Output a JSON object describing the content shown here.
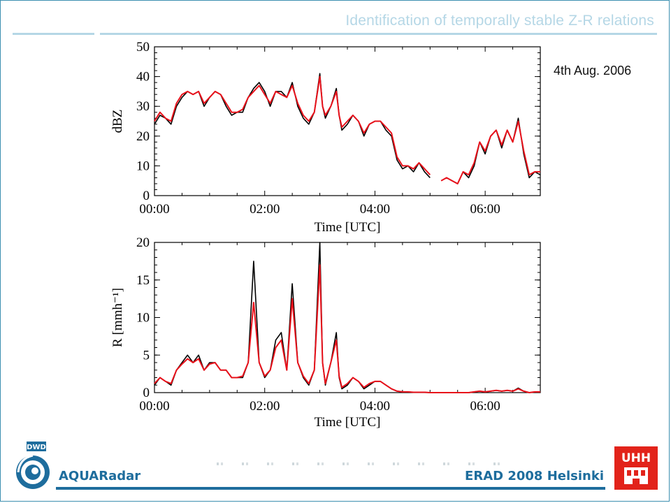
{
  "slide": {
    "title": "Identification of temporally stable Z-R relations",
    "date_label": "4th Aug. 2006",
    "footer_left": "AQUARadar",
    "footer_right": "ERAD 2008 Helsinki",
    "logo_left_text": "DWD",
    "logo_right_text": "UHH"
  },
  "colors": {
    "title": "#b5d7e6",
    "accent": "#1e6d9d",
    "series_black": "#000000",
    "series_red": "#e8101a",
    "uhh_red": "#e2231a"
  },
  "chart_data": [
    {
      "type": "line",
      "xlabel": "Time [UTC]",
      "ylabel": "dBZ",
      "xlim": [
        0,
        7
      ],
      "ylim": [
        0,
        50
      ],
      "x_ticks": [
        "00:00",
        "02:00",
        "04:00",
        "06:00"
      ],
      "y_ticks": [
        "0",
        "10",
        "20",
        "30",
        "40",
        "50"
      ],
      "grid": false,
      "x": [
        0,
        0.1,
        0.2,
        0.3,
        0.4,
        0.5,
        0.6,
        0.7,
        0.8,
        0.9,
        1.0,
        1.1,
        1.2,
        1.3,
        1.4,
        1.5,
        1.6,
        1.7,
        1.8,
        1.9,
        2.0,
        2.1,
        2.2,
        2.3,
        2.4,
        2.5,
        2.6,
        2.7,
        2.8,
        2.9,
        3.0,
        3.05,
        3.1,
        3.2,
        3.3,
        3.35,
        3.4,
        3.5,
        3.6,
        3.7,
        3.8,
        3.9,
        4.0,
        4.1,
        4.2,
        4.3,
        4.4,
        4.5,
        4.6,
        4.7,
        4.8,
        4.9,
        5.0,
        5.1,
        5.2,
        5.3,
        5.4,
        5.5,
        5.6,
        5.7,
        5.8,
        5.9,
        6.0,
        6.1,
        6.2,
        6.3,
        6.4,
        6.5,
        6.6,
        6.7,
        6.8,
        6.9,
        7.0
      ],
      "series": [
        {
          "values": [
            24,
            27,
            26,
            24,
            30,
            33,
            35,
            34,
            35,
            30,
            33,
            35,
            34,
            30,
            27,
            28,
            28,
            33,
            36,
            38,
            35,
            30,
            35,
            35,
            33,
            38,
            30,
            26,
            24,
            28,
            41,
            30,
            26,
            30,
            36,
            27,
            22,
            24,
            27,
            25,
            20,
            24,
            25,
            25,
            22,
            20,
            12,
            9,
            10,
            8,
            11,
            8,
            6,
            null,
            null,
            6,
            5,
            4,
            8,
            6,
            10,
            18,
            14,
            20,
            22,
            16,
            22,
            18,
            26,
            14,
            6,
            8,
            7
          ]
        },
        {
          "values": [
            25,
            28,
            26,
            25,
            31,
            34,
            35,
            34,
            35,
            31,
            33,
            35,
            34,
            31,
            28,
            28,
            29,
            33,
            35,
            37,
            34,
            31,
            35,
            34,
            33,
            37,
            31,
            27,
            25,
            28,
            40,
            30,
            27,
            30,
            35,
            27,
            23,
            25,
            27,
            25,
            21,
            24,
            25,
            25,
            23,
            21,
            13,
            10,
            10,
            9,
            11,
            9,
            7,
            null,
            5,
            6,
            5,
            4,
            8,
            7,
            11,
            18,
            15,
            20,
            22,
            17,
            22,
            18,
            25,
            15,
            7,
            8,
            8
          ]
        }
      ]
    },
    {
      "type": "line",
      "xlabel": "Time [UTC]",
      "ylabel": "R [mmh⁻¹]",
      "xlim": [
        0,
        7
      ],
      "ylim": [
        0,
        20
      ],
      "x_ticks": [
        "00:00",
        "02:00",
        "04:00",
        "06:00"
      ],
      "y_ticks": [
        "0",
        "5",
        "10",
        "15",
        "20"
      ],
      "grid": false,
      "x": [
        0,
        0.1,
        0.2,
        0.3,
        0.4,
        0.5,
        0.6,
        0.7,
        0.8,
        0.9,
        1.0,
        1.1,
        1.2,
        1.3,
        1.4,
        1.5,
        1.6,
        1.7,
        1.8,
        1.9,
        2.0,
        2.1,
        2.2,
        2.3,
        2.4,
        2.5,
        2.6,
        2.7,
        2.8,
        2.9,
        3.0,
        3.05,
        3.1,
        3.2,
        3.3,
        3.35,
        3.4,
        3.5,
        3.6,
        3.7,
        3.8,
        3.9,
        4.0,
        4.1,
        4.2,
        4.3,
        4.4,
        4.5,
        4.6,
        4.7,
        4.8,
        4.9,
        5.0,
        5.1,
        5.2,
        5.3,
        5.4,
        5.5,
        5.6,
        5.7,
        5.8,
        5.9,
        6.0,
        6.1,
        6.2,
        6.3,
        6.4,
        6.5,
        6.6,
        6.7,
        6.8,
        6.9,
        7.0
      ],
      "series": [
        {
          "values": [
            1,
            2,
            1.5,
            1,
            3,
            4,
            5,
            4,
            5,
            3,
            4,
            4,
            3,
            3,
            2,
            2,
            2,
            4,
            17.5,
            4,
            2,
            3,
            7,
            8,
            3,
            14.5,
            4,
            2,
            1,
            3,
            20,
            4,
            1,
            4,
            8,
            2,
            0.5,
            1,
            2,
            1.5,
            0.5,
            1,
            1.5,
            1.5,
            1,
            0.5,
            0.2,
            0.1,
            0.1,
            0.05,
            0.05,
            0.05,
            0,
            0,
            0,
            0,
            0,
            0,
            0,
            0,
            0.1,
            0.2,
            0.1,
            0.2,
            0.3,
            0.2,
            0.3,
            0.2,
            0.6,
            0.2,
            0,
            0.1,
            0.1
          ]
        },
        {
          "values": [
            1.2,
            2,
            1.5,
            1.2,
            3,
            3.8,
            4.5,
            4,
            4.5,
            3,
            3.8,
            4,
            3,
            3,
            2,
            2,
            2.2,
            4,
            12,
            4,
            2.2,
            3,
            6,
            7,
            3,
            12.5,
            4,
            2.2,
            1.2,
            3,
            17,
            4,
            1.2,
            4,
            7,
            2.2,
            0.7,
            1.2,
            2,
            1.5,
            0.7,
            1.2,
            1.5,
            1.5,
            1,
            0.5,
            0.2,
            0.1,
            0.1,
            0.05,
            0.05,
            0.05,
            0,
            0,
            0,
            0,
            0,
            0,
            0,
            0,
            0.1,
            0.2,
            0.1,
            0.2,
            0.3,
            0.2,
            0.3,
            0.2,
            0.5,
            0.2,
            0,
            0.1,
            0.1
          ]
        }
      ]
    }
  ]
}
